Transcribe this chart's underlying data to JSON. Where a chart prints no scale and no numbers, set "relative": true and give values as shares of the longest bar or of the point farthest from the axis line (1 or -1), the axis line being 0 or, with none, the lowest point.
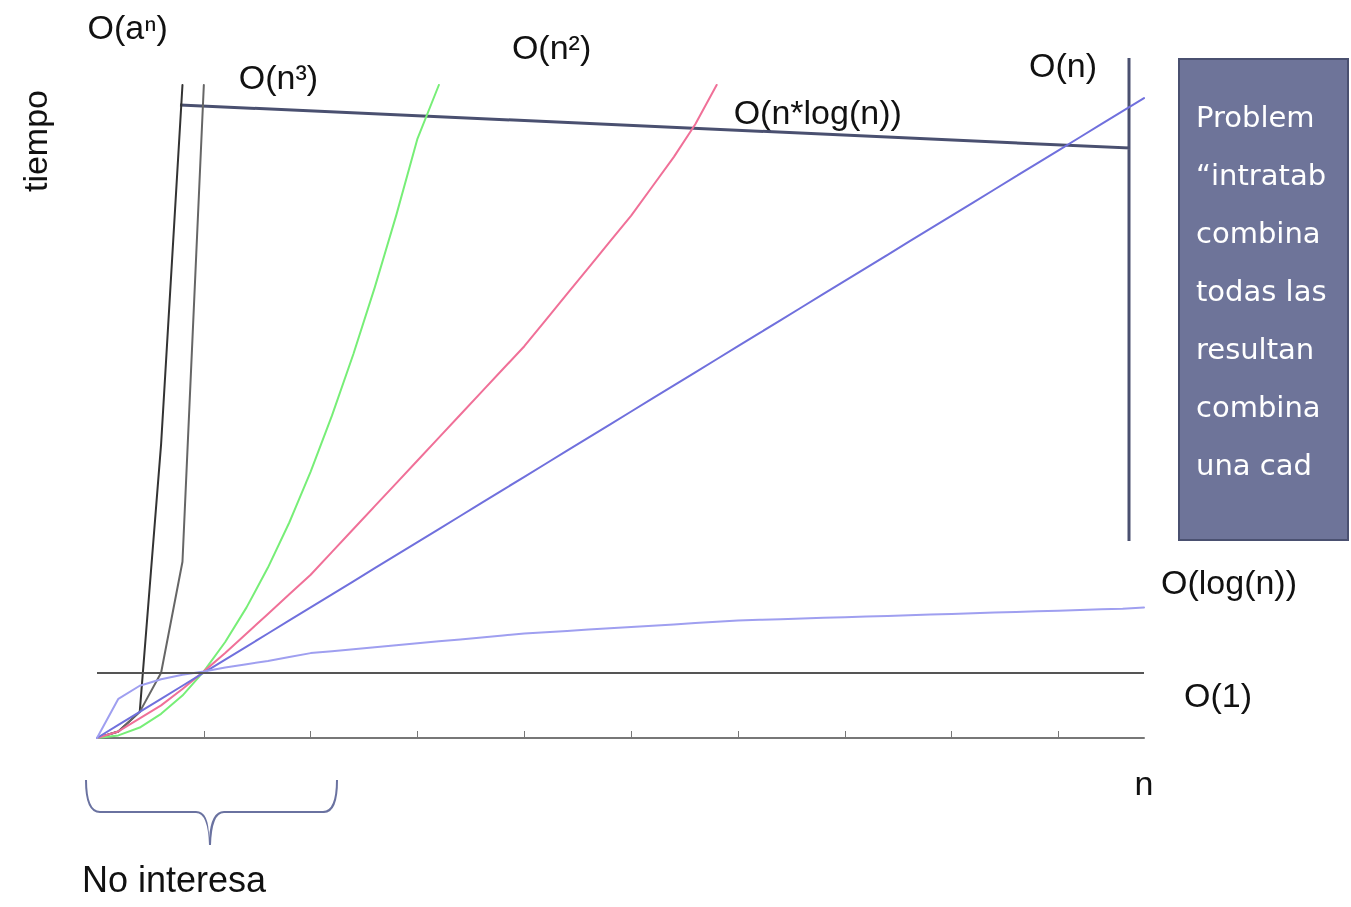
{
  "chart_data": {
    "type": "line",
    "relative": true,
    "xlabel": "n",
    "ylabel": "tiempo",
    "categories": [
      null,
      null,
      null,
      null,
      null,
      null,
      null,
      null,
      null,
      null,
      null,
      null,
      null,
      null,
      null,
      null,
      null,
      null,
      null,
      null,
      null,
      null,
      null,
      null,
      null,
      null,
      null,
      null,
      null,
      null,
      null,
      null,
      null,
      null,
      null,
      null,
      null,
      null,
      null,
      null,
      null,
      null,
      null,
      null,
      null,
      null,
      null,
      null,
      null,
      null
    ],
    "grid": false,
    "marker": "none",
    "line_style": "solid",
    "series": [
      {
        "name": "O(aⁿ)",
        "color": "#333333",
        "values": [
          0,
          0.01,
          0.04,
          0.45,
          1.0,
          null,
          null,
          null,
          null,
          null,
          null,
          null,
          null,
          null,
          null,
          null,
          null,
          null,
          null,
          null,
          null,
          null,
          null,
          null,
          null,
          null,
          null,
          null,
          null,
          null,
          null,
          null,
          null,
          null,
          null,
          null,
          null,
          null,
          null,
          null,
          null,
          null,
          null,
          null,
          null,
          null,
          null,
          null,
          null,
          null
        ]
      },
      {
        "name": "O(n³)",
        "color": "#666666",
        "values": [
          0,
          0.01,
          0.04,
          0.1,
          0.27,
          1.0,
          null,
          null,
          null,
          null,
          null,
          null,
          null,
          null,
          null,
          null,
          null,
          null,
          null,
          null,
          null,
          null,
          null,
          null,
          null,
          null,
          null,
          null,
          null,
          null,
          null,
          null,
          null,
          null,
          null,
          null,
          null,
          null,
          null,
          null,
          null,
          null,
          null,
          null,
          null,
          null,
          null,
          null,
          null,
          null
        ]
      },
      {
        "name": "O(n²)",
        "color": "#77ee77",
        "values": [
          0,
          0.004,
          0.016,
          0.037,
          0.065,
          0.102,
          0.147,
          0.2,
          0.261,
          0.33,
          0.408,
          0.494,
          0.588,
          0.69,
          0.8,
          0.918,
          1.0,
          null,
          null,
          null,
          null,
          null,
          null,
          null,
          null,
          null,
          null,
          null,
          null,
          null,
          null,
          null,
          null,
          null,
          null,
          null,
          null,
          null,
          null,
          null,
          null,
          null,
          null,
          null,
          null,
          null,
          null,
          null,
          null,
          null
        ]
      },
      {
        "name": "O(n*log(n))",
        "color": "#f07098",
        "values": [
          0,
          0.01,
          0.03,
          0.05,
          0.075,
          0.102,
          0.13,
          0.16,
          0.19,
          0.22,
          0.25,
          0.285,
          0.32,
          0.355,
          0.39,
          0.425,
          0.46,
          0.495,
          0.53,
          0.565,
          0.6,
          0.64,
          0.68,
          0.72,
          0.76,
          0.8,
          0.845,
          0.89,
          0.94,
          1.0,
          null,
          null,
          null,
          null,
          null,
          null,
          null,
          null,
          null,
          null,
          null,
          null,
          null,
          null,
          null,
          null,
          null,
          null,
          null,
          null
        ]
      },
      {
        "name": "O(n)",
        "color": "#7070dd",
        "values": [
          0,
          0.02,
          0.04,
          0.06,
          0.08,
          0.1,
          0.12,
          0.14,
          0.16,
          0.18,
          0.2,
          0.22,
          0.24,
          0.26,
          0.28,
          0.3,
          0.32,
          0.34,
          0.36,
          0.38,
          0.4,
          0.42,
          0.44,
          0.46,
          0.48,
          0.5,
          0.52,
          0.54,
          0.56,
          0.58,
          0.6,
          0.62,
          0.64,
          0.66,
          0.68,
          0.7,
          0.72,
          0.74,
          0.76,
          0.78,
          0.8,
          0.82,
          0.84,
          0.86,
          0.88,
          0.9,
          0.92,
          0.94,
          0.96,
          0.98
        ]
      },
      {
        "name": "O(log(n))",
        "color": "#9f9ff0",
        "values": [
          0,
          0.06,
          0.08,
          0.09,
          0.097,
          0.102,
          0.108,
          0.113,
          0.118,
          0.124,
          0.13,
          0.133,
          0.136,
          0.139,
          0.142,
          0.145,
          0.148,
          0.151,
          0.154,
          0.157,
          0.16,
          0.162,
          0.164,
          0.166,
          0.168,
          0.17,
          0.172,
          0.174,
          0.176,
          0.178,
          0.18,
          0.181,
          0.182,
          0.183,
          0.184,
          0.185,
          0.186,
          0.187,
          0.188,
          0.189,
          0.19,
          0.191,
          0.192,
          0.193,
          0.194,
          0.195,
          0.196,
          0.197,
          0.198,
          0.2
        ]
      }
    ],
    "ref_lines": [
      {
        "axis": "y",
        "value": 0.102,
        "label": "O(1)",
        "color": "#555555"
      }
    ],
    "annotations": [
      "No interesa",
      "Problem\n“intratab\ncombina\ntodas las\nresultan\ncombina\nuna cad"
    ]
  }
}
